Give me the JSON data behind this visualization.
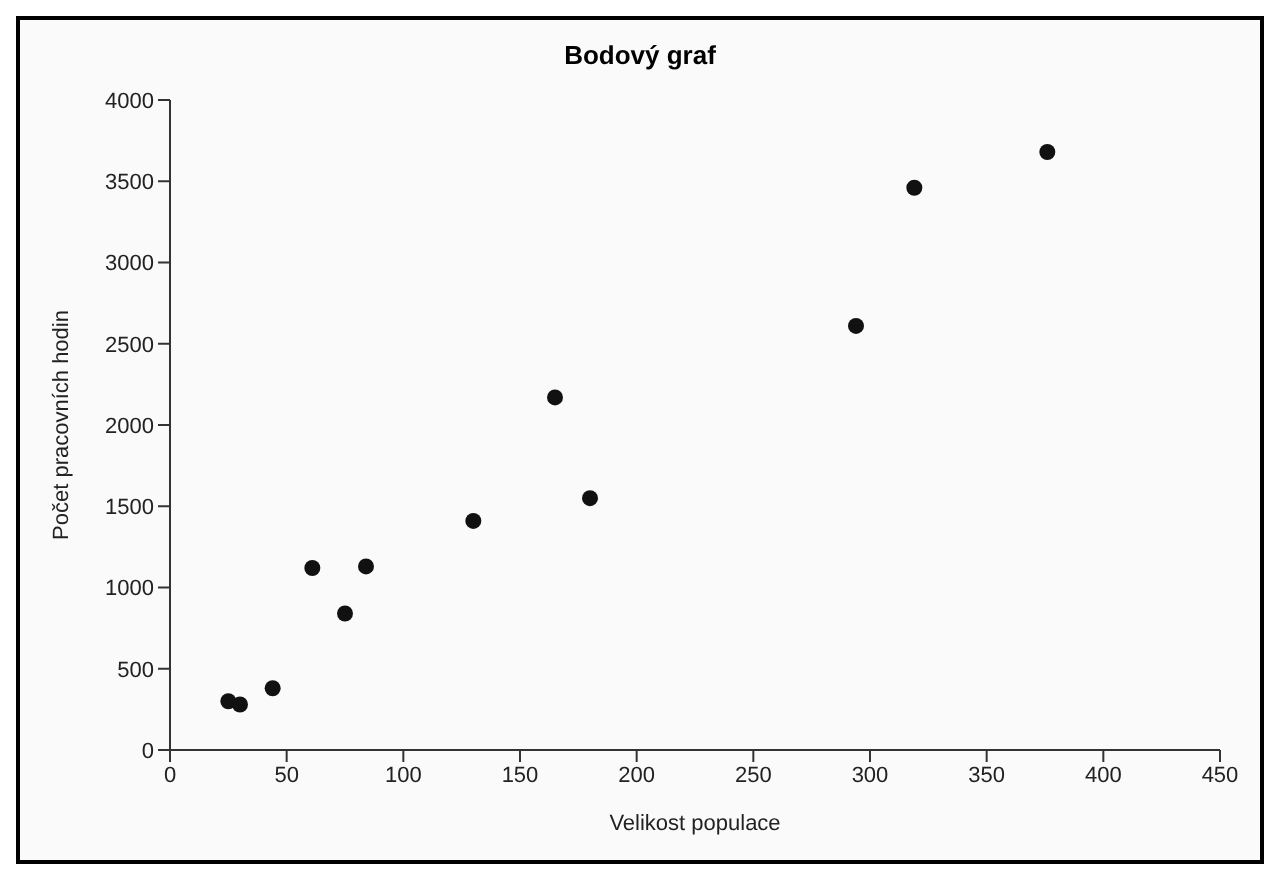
{
  "chart_data": {
    "type": "scatter",
    "title": "Bodový graf",
    "xlabel": "Velikost populace",
    "ylabel": "Počet pracovních hodin",
    "x": [
      25,
      30,
      44,
      61,
      75,
      84,
      130,
      165,
      180,
      294,
      319,
      376
    ],
    "values": [
      300,
      280,
      380,
      1120,
      840,
      1130,
      1410,
      2170,
      1550,
      2610,
      3460,
      3680
    ],
    "color": "#111111",
    "marker": "circle",
    "xlim": [
      0,
      450
    ],
    "xticks": [
      0,
      50,
      100,
      150,
      200,
      250,
      300,
      350,
      400,
      450
    ],
    "ylim": [
      0,
      4000
    ],
    "yticks": [
      0,
      500,
      1000,
      1500,
      2000,
      2500,
      3000,
      3500,
      4000
    ],
    "grid": false,
    "legend": false
  }
}
